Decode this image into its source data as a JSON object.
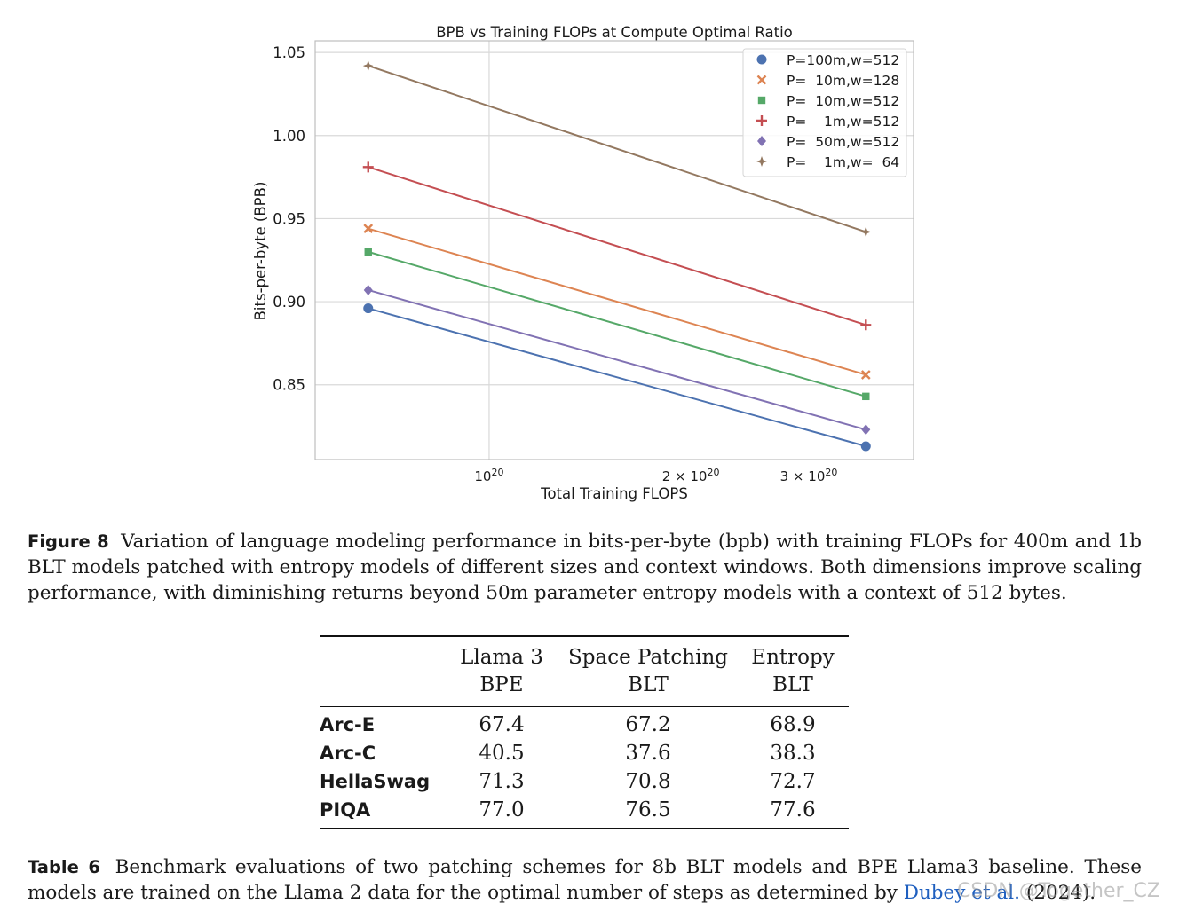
{
  "chart_data": {
    "type": "line",
    "title": "BPB vs Training FLOPs at Compute Optimal Ratio",
    "xlabel": "Total Training FLOPS",
    "ylabel": "Bits-per-byte (BPB)",
    "x_scale": "log",
    "x_ticks": [
      {
        "value": 1e+20,
        "base": "10",
        "exp": "20",
        "mult": ""
      },
      {
        "value": 2e+20,
        "base": "10",
        "exp": "20",
        "mult": "2 × "
      },
      {
        "value": 3e+20,
        "base": "10",
        "exp": "20",
        "mult": "3 × "
      }
    ],
    "y_ticks": [
      "0.85",
      "0.90",
      "0.95",
      "1.00",
      "1.05"
    ],
    "ylim": [
      0.805,
      1.057
    ],
    "xlim": [
      5.5e+19,
      4.3e+20
    ],
    "grid": true,
    "legend_position": "top-right",
    "x": [
      6.6e+19,
      3.65e+20
    ],
    "series": [
      {
        "name": "P=100m,w=512",
        "color": "#4c72b0",
        "marker": "circle",
        "values": [
          0.896,
          0.813
        ]
      },
      {
        "name": "P=  10m,w=128",
        "color": "#dd8452",
        "marker": "x",
        "values": [
          0.944,
          0.856
        ]
      },
      {
        "name": "P=  10m,w=512",
        "color": "#55a868",
        "marker": "square",
        "values": [
          0.93,
          0.843
        ]
      },
      {
        "name": "P=    1m,w=512",
        "color": "#c44e52",
        "marker": "plus",
        "values": [
          0.981,
          0.886
        ]
      },
      {
        "name": "P=  50m,w=512",
        "color": "#8172b3",
        "marker": "diamond",
        "values": [
          0.907,
          0.823
        ]
      },
      {
        "name": "P=    1m,w=  64",
        "color": "#937860",
        "marker": "star4",
        "values": [
          1.042,
          0.942
        ]
      }
    ]
  },
  "figure_caption": {
    "label": "Figure 8",
    "text": "Variation of language modeling performance in bits-per-byte (bpb) with training FLOPs for 400m and 1b BLT models patched with entropy models of different sizes and context windows. Both dimensions improve scaling performance, with diminishing returns beyond 50m parameter entropy models with a context of 512 bytes."
  },
  "table": {
    "headers": [
      {
        "line1": "Llama 3",
        "line2": "BPE"
      },
      {
        "line1": "Space Patching",
        "line2": "BLT"
      },
      {
        "line1": "Entropy",
        "line2": "BLT"
      }
    ],
    "rows": [
      {
        "label": "Arc-E",
        "values": [
          "67.4",
          "67.2",
          "68.9"
        ]
      },
      {
        "label": "Arc-C",
        "values": [
          "40.5",
          "37.6",
          "38.3"
        ]
      },
      {
        "label": "HellaSwag",
        "values": [
          "71.3",
          "70.8",
          "72.7"
        ]
      },
      {
        "label": "PIQA",
        "values": [
          "77.0",
          "76.5",
          "77.6"
        ]
      }
    ]
  },
  "table_caption": {
    "label": "Table 6",
    "text_before": "Benchmark evaluations of two patching schemes for 8b BLT models and BPE Llama3 baseline. These models are trained on the Llama 2 data for the optimal number of steps as determined by ",
    "cite": "Dubey et al.",
    "text_after": " (2024)."
  },
  "watermark": "CSDN @Together_CZ"
}
